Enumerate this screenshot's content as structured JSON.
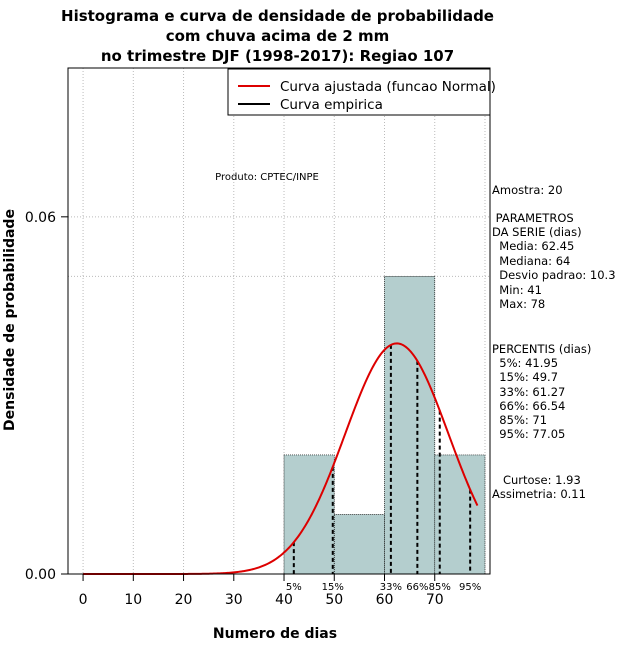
{
  "chart_data": {
    "type": "bar",
    "title": [
      "Histograma e curva de densidade de probabilidade",
      "com chuva acima de 2 mm",
      "no trimestre DJF (1998-2017): Regiao 107"
    ],
    "xlabel": "Numero de dias",
    "ylabel": "Densidade de probabilidade",
    "xlim": [
      -3,
      81
    ],
    "ylim": [
      0,
      0.085
    ],
    "xticks": [
      0,
      10,
      20,
      30,
      40,
      50,
      60,
      70
    ],
    "yticks": [
      0.0,
      0.06
    ],
    "ytick_labels": [
      "0.00",
      "0.06"
    ],
    "bins": [
      {
        "from": 40,
        "to": 50,
        "density": 0.02
      },
      {
        "from": 50,
        "to": 60,
        "density": 0.01
      },
      {
        "from": 60,
        "to": 70,
        "density": 0.05
      },
      {
        "from": 70,
        "to": 80,
        "density": 0.02
      }
    ],
    "highlight_y": 0.05,
    "normal_curve": {
      "mean": 62.45,
      "sd": 10.3,
      "from": 0,
      "to": 78.5
    },
    "percentile_lines": [
      {
        "label": "5%",
        "x": 41.95
      },
      {
        "label": "15%",
        "x": 49.7
      },
      {
        "label": "33%",
        "x": 61.27
      },
      {
        "label": "66%",
        "x": 66.54
      },
      {
        "label": "85%",
        "x": 71
      },
      {
        "label": "95%",
        "x": 77.05
      }
    ],
    "legend": [
      {
        "label": "Curva ajustada (funcao Normal)",
        "color": "#dd0000"
      },
      {
        "label": "Curva empirica",
        "color": "#000000"
      }
    ],
    "annotation": "Produto: CPTEC/INPE"
  },
  "colors": {
    "bar_fill": "#b4cece",
    "curve": "#dd0000",
    "grid": "#bbbbbb"
  },
  "side_panel": {
    "amostra": "Amostra: 20",
    "params_title_1": " PARAMETROS",
    "params_title_2": "DA SERIE (dias)",
    "media": "  Media: 62.45",
    "mediana": "  Mediana: 64",
    "desvio": "  Desvio padrao: 10.3",
    "min": "  Min: 41",
    "max": "  Max: 78",
    "percentis_title": "PERCENTIS (dias)",
    "p5": "  5%: 41.95",
    "p15": "  15%: 49.7",
    "p33": "  33%: 61.27",
    "p66": "  66%: 66.54",
    "p85": "  85%: 71",
    "p95": "  95%: 77.05",
    "curtose": "   Curtose: 1.93",
    "assimetria": "Assimetria: 0.11"
  }
}
